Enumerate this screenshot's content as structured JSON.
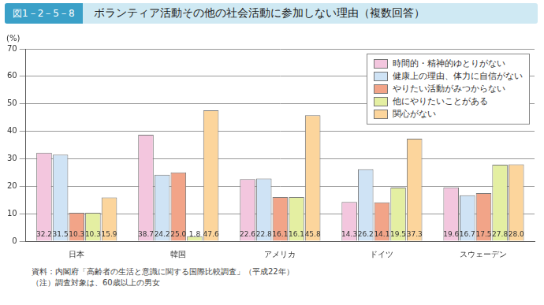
{
  "chart_data": {
    "type": "bar",
    "figure_label": "図1－2－5－8",
    "title": "ボランティア活動その他の社会活動に参加しない理由（複数回答）",
    "y_label": "(%)",
    "categories": [
      "日本",
      "韓国",
      "アメリカ",
      "ドイツ",
      "スウェーデン"
    ],
    "series": [
      {
        "name": "時間的・精神的ゆとりがない",
        "color": "#f3c6de",
        "values": [
          32.2,
          38.7,
          22.6,
          14.3,
          19.6
        ],
        "value_labels": [
          "32.2",
          "38.7",
          "22.6",
          "14.3",
          "19.6"
        ]
      },
      {
        "name": "健康上の理由、体力に自信がない",
        "color": "#cfe3f5",
        "values": [
          31.5,
          24.2,
          22.8,
          26.2,
          16.7
        ],
        "value_labels": [
          "31.5",
          "24.2",
          "22.8",
          "26.2",
          "16.7"
        ]
      },
      {
        "name": "やりたい活動がみつからない",
        "color": "#f2a488",
        "values": [
          10.3,
          25.0,
          16.1,
          14.1,
          17.5
        ],
        "value_labels": [
          "10.3",
          "25.0",
          "16.1",
          "14.1",
          "17.5"
        ]
      },
      {
        "name": "他にやりたいことがある",
        "color": "#e4efa2",
        "values": [
          10.3,
          1.8,
          16.1,
          19.5,
          27.8
        ],
        "value_labels": [
          "10.3",
          "1.8",
          "16.1",
          "19.5",
          "27.8"
        ]
      },
      {
        "name": "関心がない",
        "color": "#fcd59c",
        "values": [
          15.9,
          47.6,
          45.8,
          37.3,
          28.0
        ],
        "value_labels": [
          "15.9",
          "47.6",
          "45.8",
          "37.3",
          "28.0"
        ]
      }
    ],
    "ylim": [
      0,
      70
    ],
    "yticks": [
      0,
      10,
      20,
      30,
      40,
      50,
      60,
      70
    ],
    "grid": true,
    "legend": "top-right",
    "data_labels": true,
    "notes": [
      "資料：内閣府「高齢者の生活と意識に関する国際比較調査」（平成22年）",
      "（注）調査対象は、60歳以上の男女"
    ]
  }
}
